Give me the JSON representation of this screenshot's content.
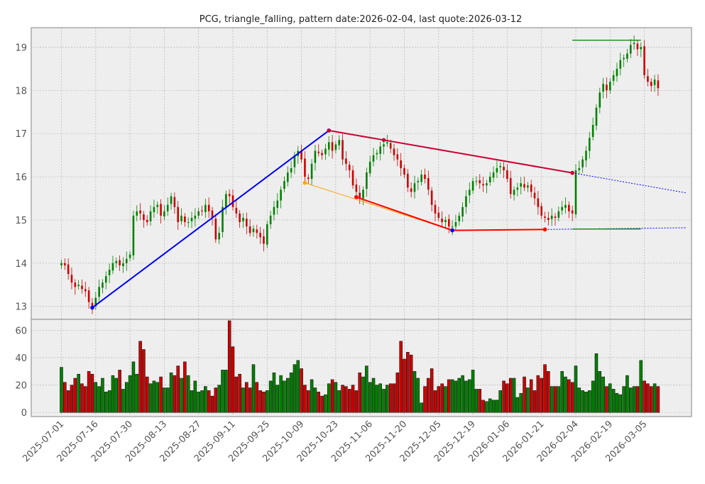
{
  "chart_data": {
    "type": "candlestick",
    "title": "PCG, triangle_falling, pattern date:2026-02-04, last quote:2026-03-12",
    "colors": {
      "up": "#008000",
      "down": "#cc0000",
      "volume_up": "#008000",
      "volume_down": "#cc0000",
      "trend_main": "#0000ff",
      "trend_upper": "#cc0033",
      "trend_lower": "#ff0000",
      "trend_alt": "#ffa500",
      "target": "#008000",
      "background": "#eeeeee",
      "grid": "#bbbbbb"
    },
    "x_tick_labels": [
      "2025-07-01",
      "2025-07-16",
      "2025-07-30",
      "2025-08-13",
      "2025-08-27",
      "2025-09-11",
      "2025-09-25",
      "2025-10-09",
      "2025-10-23",
      "2025-11-06",
      "2025-11-20",
      "2025-12-05",
      "2025-12-19",
      "2026-01-06",
      "2026-01-21",
      "2026-02-04",
      "2026-02-19",
      "2026-03-05"
    ],
    "x_tick_index": [
      0,
      10,
      20,
      30,
      40,
      50,
      60,
      70,
      80,
      90,
      100,
      110,
      120,
      130,
      140,
      150,
      160,
      170
    ],
    "price_axis": {
      "ylim": [
        12.7,
        19.45
      ],
      "ticks": [
        13,
        14,
        15,
        16,
        17,
        18,
        19
      ]
    },
    "volume_axis": {
      "ylim": [
        -3,
        68
      ],
      "ticks": [
        0,
        20,
        40,
        60
      ]
    },
    "close": [
      14.0,
      13.95,
      13.75,
      13.55,
      13.45,
      13.5,
      13.4,
      13.35,
      13.1,
      13.0,
      13.2,
      13.45,
      13.55,
      13.7,
      13.85,
      14.0,
      14.05,
      13.95,
      14.0,
      14.1,
      14.2,
      15.1,
      15.2,
      15.15,
      15.0,
      14.95,
      15.2,
      15.3,
      15.35,
      15.1,
      15.2,
      15.35,
      15.55,
      15.3,
      14.95,
      15.1,
      14.95,
      14.95,
      15.05,
      15.1,
      15.2,
      15.2,
      15.35,
      15.2,
      15.05,
      14.55,
      14.7,
      15.3,
      15.6,
      15.55,
      15.3,
      15.15,
      14.95,
      15.05,
      14.85,
      14.7,
      14.8,
      14.7,
      14.6,
      14.45,
      14.9,
      15.1,
      15.3,
      15.45,
      15.7,
      15.9,
      16.1,
      16.2,
      16.5,
      16.6,
      16.4,
      16.0,
      15.95,
      16.3,
      16.6,
      16.55,
      16.5,
      16.65,
      16.8,
      16.6,
      16.75,
      16.85,
      16.4,
      16.3,
      16.15,
      15.8,
      15.65,
      15.5,
      15.7,
      16.1,
      16.35,
      16.5,
      16.55,
      16.7,
      16.75,
      16.8,
      16.65,
      16.5,
      16.4,
      16.2,
      16.05,
      15.75,
      15.65,
      15.85,
      15.9,
      16.05,
      15.95,
      15.7,
      15.35,
      15.15,
      15.05,
      14.95,
      15.0,
      14.85,
      14.85,
      14.95,
      15.1,
      15.3,
      15.55,
      15.7,
      15.9,
      15.9,
      15.85,
      15.8,
      15.85,
      16.0,
      16.1,
      16.2,
      16.25,
      16.15,
      15.95,
      15.6,
      15.7,
      15.75,
      15.85,
      15.75,
      15.8,
      15.65,
      15.5,
      15.3,
      15.1,
      15.05,
      15.0,
      15.1,
      15.05,
      15.2,
      15.3,
      15.35,
      15.2,
      15.15,
      16.15,
      16.2,
      16.4,
      16.6,
      16.9,
      17.2,
      17.6,
      17.95,
      18.15,
      18.0,
      18.2,
      18.35,
      18.5,
      18.7,
      18.75,
      18.85,
      19.05,
      19.1,
      18.95,
      19.0,
      18.35,
      18.2,
      18.1,
      18.25,
      18.05
    ],
    "volume": [
      33,
      22,
      16,
      20,
      25,
      28,
      21,
      19,
      30,
      28,
      22,
      19,
      25,
      15,
      16,
      27,
      25,
      31,
      17,
      22,
      27,
      37,
      28,
      52,
      46,
      26,
      21,
      23,
      22,
      26,
      18,
      18,
      29,
      27,
      34,
      25,
      37,
      27,
      16,
      23,
      15,
      16,
      19,
      16,
      12,
      18,
      20,
      31,
      31,
      67,
      48,
      26,
      28,
      18,
      22,
      18,
      35,
      22,
      16,
      15,
      16,
      23,
      29,
      20,
      27,
      23,
      25,
      29,
      35,
      38,
      32,
      20,
      16,
      24,
      18,
      15,
      12,
      13,
      21,
      24,
      22,
      16,
      20,
      19,
      17,
      20,
      16,
      29,
      26,
      34,
      22,
      25,
      20,
      21,
      17,
      20,
      21,
      21,
      29,
      52,
      39,
      44,
      42,
      30,
      25,
      7,
      19,
      25,
      32,
      16,
      19,
      21,
      19,
      24,
      24,
      23,
      25,
      27,
      23,
      24,
      31,
      17,
      17,
      9,
      8,
      10,
      9,
      9,
      16,
      23,
      21,
      25,
      25,
      11,
      14,
      26,
      18,
      24,
      16,
      27,
      25,
      35,
      30,
      19,
      19,
      19,
      30,
      26,
      24,
      22,
      34,
      18,
      16,
      15,
      16,
      23,
      43,
      30,
      26,
      19,
      21,
      17,
      14,
      13,
      19,
      27,
      18,
      19,
      19,
      38,
      23,
      21,
      19,
      21,
      19
    ],
    "annotations": {
      "main_trend": [
        {
          "x": 9,
          "y": 12.97
        },
        {
          "x": 78,
          "y": 17.07
        }
      ],
      "upper_line": [
        {
          "x": 78,
          "y": 17.07
        },
        {
          "x": 94,
          "y": 16.85
        },
        {
          "x": 149,
          "y": 16.09
        }
      ],
      "upper_extension": [
        {
          "x": 149,
          "y": 16.09
        },
        {
          "x": 182,
          "y": 15.63
        }
      ],
      "lower_line": [
        {
          "x": 86,
          "y": 15.53
        },
        {
          "x": 114,
          "y": 14.76
        },
        {
          "x": 141,
          "y": 14.78
        }
      ],
      "alt_lower": [
        {
          "x": 71,
          "y": 15.86
        },
        {
          "x": 114,
          "y": 14.76
        },
        {
          "x": 141,
          "y": 14.78
        }
      ],
      "lower_extension": [
        {
          "x": 141,
          "y": 14.78
        },
        {
          "x": 182,
          "y": 14.82
        }
      ],
      "target_upper": [
        {
          "x": 149,
          "y": 19.16
        },
        {
          "x": 169,
          "y": 19.16
        }
      ],
      "target_lower": [
        {
          "x": 149,
          "y": 14.79
        },
        {
          "x": 169,
          "y": 14.79
        }
      ]
    }
  }
}
